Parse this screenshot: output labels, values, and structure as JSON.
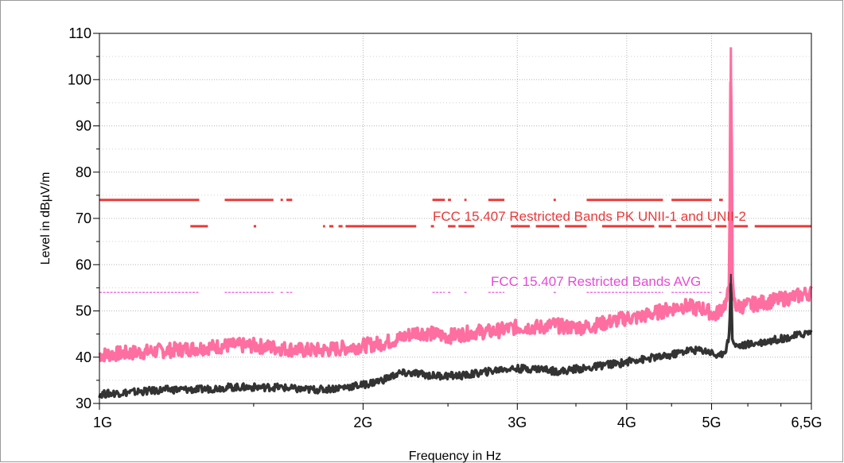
{
  "chart_data": {
    "type": "line",
    "title": "",
    "xlabel": "Frequency in Hz",
    "ylabel": "Level in dBµV/m",
    "x_scale": "log",
    "x_unit": "Hz",
    "xlim": [
      1000000000,
      6500000000
    ],
    "ylim": [
      30,
      110
    ],
    "grid": true,
    "x_ticks": [
      {
        "value": 1000000000,
        "label": "1G"
      },
      {
        "value": 2000000000,
        "label": "2G"
      },
      {
        "value": 3000000000,
        "label": "3G"
      },
      {
        "value": 4000000000,
        "label": "4G"
      },
      {
        "value": 5000000000,
        "label": "5G"
      },
      {
        "value": 6500000000,
        "label": "6,5G"
      }
    ],
    "y_ticks": [
      {
        "value": 30,
        "label": "30"
      },
      {
        "value": 40,
        "label": "40"
      },
      {
        "value": 50,
        "label": "50"
      },
      {
        "value": 60,
        "label": "60"
      },
      {
        "value": 70,
        "label": "70"
      },
      {
        "value": 80,
        "label": "80"
      },
      {
        "value": 90,
        "label": "90"
      },
      {
        "value": 100,
        "label": "100"
      },
      {
        "value": 110,
        "label": "110"
      }
    ],
    "limit_lines": [
      {
        "label": "FCC 15.407 Restricted Bands PK UNII-1 and UNII-2",
        "color": "#e83a3a",
        "level_upper": 74,
        "level_lower": 68.3,
        "segments_upper": [
          [
            1.0,
            1.3
          ],
          [
            1.39,
            1.58
          ],
          [
            1.61,
            1.62
          ],
          [
            1.635,
            1.66
          ],
          [
            2.4,
            2.48
          ],
          [
            2.5,
            2.52
          ],
          [
            2.61,
            2.625
          ],
          [
            2.78,
            2.9
          ],
          [
            3.3,
            3.32
          ],
          [
            3.6,
            4.4
          ],
          [
            4.5,
            5.0
          ],
          [
            5.1,
            5.15
          ]
        ],
        "segments_lower": [
          [
            1.27,
            1.33
          ],
          [
            1.5,
            1.51
          ],
          [
            1.8,
            1.81
          ],
          [
            1.83,
            1.85
          ],
          [
            1.875,
            1.895
          ],
          [
            1.91,
            2.3
          ],
          [
            2.39,
            2.41
          ],
          [
            2.5,
            2.55
          ],
          [
            2.57,
            2.68
          ],
          [
            2.95,
            3.1
          ],
          [
            3.15,
            3.35
          ],
          [
            3.4,
            3.6
          ],
          [
            3.75,
            4.3
          ],
          [
            4.35,
            4.5
          ],
          [
            4.55,
            5.0
          ],
          [
            5.05,
            5.2
          ],
          [
            5.3,
            5.5
          ],
          [
            5.6,
            6.5
          ]
        ]
      },
      {
        "label": "FCC 15.407 Restricted Bands AVG",
        "color": "#e64ad6",
        "level": 54,
        "segments": [
          [
            1.0,
            1.3
          ],
          [
            1.39,
            1.58
          ],
          [
            1.61,
            1.62
          ],
          [
            1.635,
            1.66
          ],
          [
            2.4,
            2.48
          ],
          [
            2.5,
            2.52
          ],
          [
            2.61,
            2.625
          ],
          [
            2.78,
            2.9
          ],
          [
            3.3,
            3.32
          ],
          [
            3.6,
            4.4
          ],
          [
            4.5,
            5.0
          ],
          [
            5.1,
            5.15
          ]
        ]
      }
    ],
    "series": [
      {
        "color": "#ff6ea0",
        "fill_band": 3.2,
        "x_ghz": [
          1.0,
          1.1,
          1.2,
          1.3,
          1.4,
          1.5,
          1.6,
          1.7,
          1.8,
          1.9,
          2.0,
          2.1,
          2.2,
          2.3,
          2.4,
          2.5,
          2.6,
          2.7,
          2.8,
          2.9,
          3.0,
          3.1,
          3.2,
          3.3,
          3.4,
          3.5,
          3.6,
          3.7,
          3.8,
          3.9,
          4.0,
          4.1,
          4.2,
          4.3,
          4.4,
          4.5,
          4.6,
          4.7,
          4.8,
          4.9,
          5.0,
          5.05,
          5.1,
          5.15,
          5.2,
          5.24,
          5.26,
          5.28,
          5.32,
          5.4,
          5.6,
          5.8,
          6.0,
          6.2,
          6.5
        ],
        "y": [
          40.5,
          41.0,
          41.5,
          42.0,
          42.5,
          42.5,
          42.0,
          41.5,
          41.5,
          42.0,
          42.5,
          43.0,
          44.0,
          45.5,
          45.0,
          44.5,
          45.0,
          45.5,
          45.5,
          46.0,
          46.5,
          46.5,
          46.5,
          47.0,
          46.5,
          46.5,
          46.5,
          47.0,
          47.5,
          48.0,
          48.5,
          48.5,
          49.0,
          49.5,
          50.0,
          50.5,
          51.0,
          51.0,
          50.5,
          50.5,
          49.5,
          49.0,
          50.0,
          51.0,
          52.0,
          55.0,
          107.0,
          55.0,
          51.0,
          51.0,
          51.5,
          52.0,
          52.5,
          53.0,
          54.0
        ]
      },
      {
        "color": "#333333",
        "fill_band": 1.6,
        "x_ghz": [
          1.0,
          1.1,
          1.2,
          1.3,
          1.4,
          1.5,
          1.6,
          1.7,
          1.8,
          1.9,
          2.0,
          2.1,
          2.2,
          2.3,
          2.4,
          2.5,
          2.6,
          2.7,
          2.8,
          2.9,
          3.0,
          3.1,
          3.2,
          3.3,
          3.4,
          3.5,
          3.6,
          3.7,
          3.8,
          3.9,
          4.0,
          4.1,
          4.2,
          4.3,
          4.4,
          4.5,
          4.6,
          4.7,
          4.8,
          4.9,
          5.0,
          5.05,
          5.1,
          5.15,
          5.2,
          5.24,
          5.26,
          5.28,
          5.32,
          5.4,
          5.6,
          5.8,
          6.0,
          6.2,
          6.5
        ],
        "y": [
          32.0,
          32.5,
          33.0,
          33.0,
          33.5,
          33.5,
          33.5,
          33.0,
          33.0,
          33.5,
          34.0,
          35.0,
          36.5,
          36.5,
          36.0,
          36.0,
          36.0,
          36.5,
          37.0,
          37.5,
          37.5,
          37.5,
          37.5,
          37.0,
          37.0,
          37.5,
          37.5,
          38.0,
          38.5,
          38.5,
          39.0,
          39.5,
          39.5,
          40.0,
          40.0,
          40.5,
          41.0,
          41.5,
          41.5,
          41.5,
          41.0,
          40.5,
          40.0,
          41.0,
          42.0,
          45.0,
          58.0,
          44.0,
          42.5,
          42.5,
          43.0,
          43.5,
          44.0,
          44.5,
          45.5
        ]
      }
    ]
  }
}
